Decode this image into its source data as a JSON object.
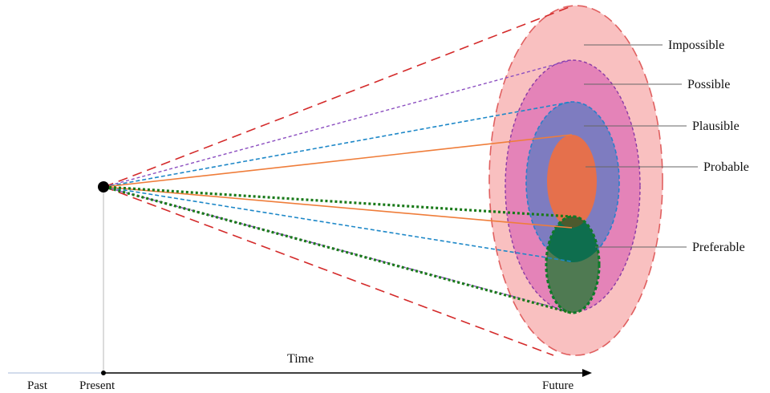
{
  "labels": {
    "impossible": "Impossible",
    "possible": "Possible",
    "plausible": "Plausible",
    "probable": "Probable",
    "preferable": "Preferable"
  },
  "axis": {
    "time": "Time",
    "past": "Past",
    "present": "Present",
    "future": "Future"
  },
  "colors": {
    "impossible_fill": "#f9c0c0",
    "impossible_stroke": "#e06060",
    "possible_fill": "#e483b8",
    "possible_stroke": "#8a3aa6",
    "plausible_fill": "#7e7cc0",
    "plausible_stroke": "#2a7fc9",
    "probable_fill": "#e5704c",
    "preferable_fill": "#4f7a52",
    "preferable_stroke": "#0f7a2a",
    "impossible_cone": "#d42a2a",
    "possible_cone": "#8c4fc0",
    "plausible_cone": "#1e88c8",
    "probable_cone": "#ef7d3a",
    "preferable_cone": "#1a7a1a"
  }
}
